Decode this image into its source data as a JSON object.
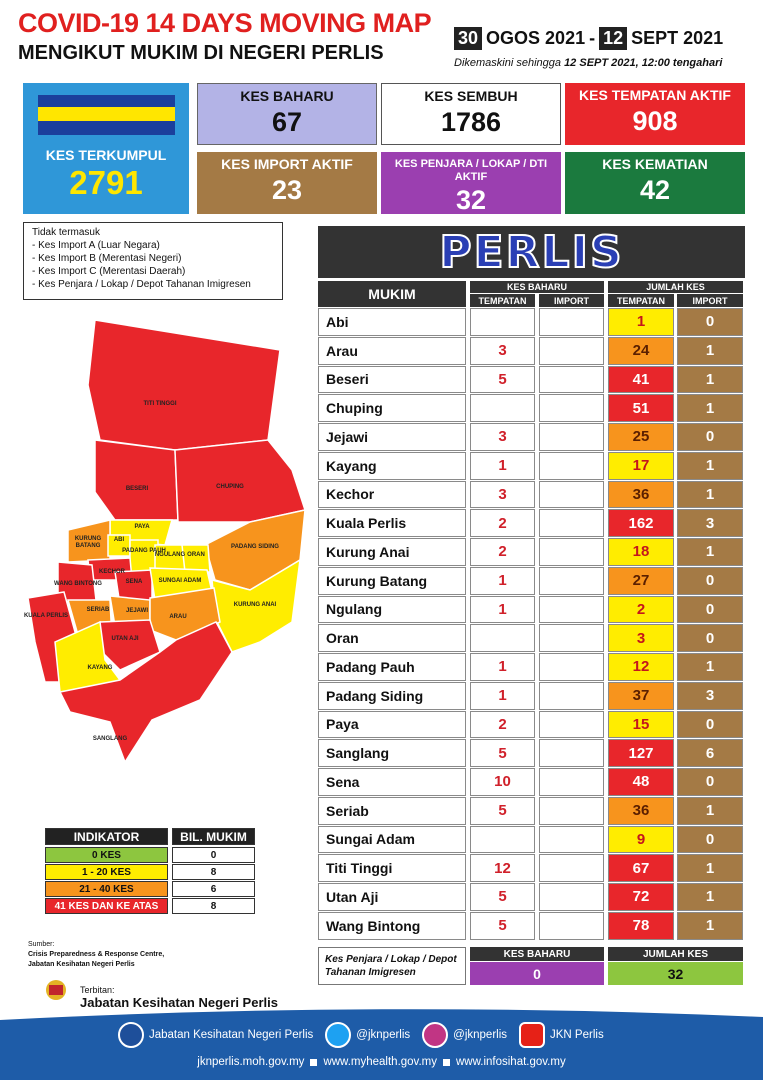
{
  "header": {
    "title": "COVID-19 14 DAYS MOVING MAP",
    "subtitle": "MENGIKUT MUKIM DI NEGERI PERLIS",
    "from_day": "30",
    "from_month": "OGOS 2021",
    "separator": "-",
    "to_day": "12",
    "to_month": "SEPT 2021",
    "updated_label": "Dikemaskini sehingga",
    "updated_time": "12 SEPT 2021, 12:00 tengahari"
  },
  "cards": [
    {
      "label": "KES TERKUMPUL",
      "value": 2791
    },
    {
      "label": "KES BAHARU",
      "value": 67
    },
    {
      "label": "KES SEMBUH",
      "value": 1786
    },
    {
      "label": "KES TEMPATAN AKTIF",
      "value": 908
    },
    {
      "label": "KES IMPORT AKTIF",
      "value": 23
    },
    {
      "label": "KES PENJARA / LOKAP / DTI AKTIF",
      "value": 32
    },
    {
      "label": "KES KEMATIAN",
      "value": 42
    }
  ],
  "notes": {
    "title": "Tidak termasuk",
    "items": [
      "- Kes Import A (Luar Negara)",
      "- Kes Import B (Merentasi Negeri)",
      "- Kes Import C (Merentasi Daerah)",
      "- Kes Penjara / Lokap / Depot Tahanan Imigresen"
    ]
  },
  "map_labels": [
    "TITI TINGGI",
    "BESERI",
    "CHUPING",
    "PAYA",
    "KURUNG BATANG",
    "ABI",
    "PADANG PAUH",
    "NGULANG",
    "ORAN",
    "PADANG SIDING",
    "KECHOR",
    "SENA",
    "SUNGAI ADAM",
    "WANG BINTONG",
    "SERIAB",
    "JEJAWI",
    "KUALA PERLIS",
    "KURUNG ANAI",
    "ARAU",
    "UTAN AJI",
    "KAYANG",
    "SANGLANG"
  ],
  "table": {
    "title": "PERLIS",
    "header_mukim": "MUKIM",
    "header_new": "KES BAHARU",
    "header_total": "JUMLAH KES",
    "sub_headers": [
      "TEMPATAN",
      "IMPORT",
      "TEMPATAN",
      "IMPORT"
    ],
    "rows": [
      [
        "Abi",
        null,
        null,
        1,
        0
      ],
      [
        "Arau",
        3,
        null,
        24,
        1
      ],
      [
        "Beseri",
        5,
        null,
        41,
        1
      ],
      [
        "Chuping",
        null,
        null,
        51,
        1
      ],
      [
        "Jejawi",
        3,
        null,
        25,
        0
      ],
      [
        "Kayang",
        1,
        null,
        17,
        1
      ],
      [
        "Kechor",
        3,
        null,
        36,
        1
      ],
      [
        "Kuala Perlis",
        2,
        null,
        162,
        3
      ],
      [
        "Kurung Anai",
        2,
        null,
        18,
        1
      ],
      [
        "Kurung Batang",
        1,
        null,
        27,
        0
      ],
      [
        "Ngulang",
        1,
        null,
        2,
        0
      ],
      [
        "Oran",
        null,
        null,
        3,
        0
      ],
      [
        "Padang Pauh",
        1,
        null,
        12,
        1
      ],
      [
        "Padang Siding",
        1,
        null,
        37,
        3
      ],
      [
        "Paya",
        2,
        null,
        15,
        0
      ],
      [
        "Sanglang",
        5,
        null,
        127,
        6
      ],
      [
        "Sena",
        10,
        null,
        48,
        0
      ],
      [
        "Seriab",
        5,
        null,
        36,
        1
      ],
      [
        "Sungai Adam",
        null,
        null,
        9,
        0
      ],
      [
        "Titi Tinggi",
        12,
        null,
        67,
        1
      ],
      [
        "Utan Aji",
        5,
        null,
        72,
        1
      ],
      [
        "Wang Bintong",
        5,
        null,
        78,
        1
      ]
    ]
  },
  "prison": {
    "label": "Kes Penjara / Lokap / Depot Tahanan Imigresen",
    "header_new": "KES BAHARU",
    "header_total": "JUMLAH KES",
    "new": 0,
    "total": 32
  },
  "indicator": {
    "header_label": "INDIKATOR",
    "header_count": "BIL. MUKIM",
    "rows": [
      {
        "label": "0 KES",
        "count": 0,
        "color": "#8dc63f"
      },
      {
        "label": "1 - 20 KES",
        "count": 8,
        "color": "#ffed00"
      },
      {
        "label": "21 - 40 KES",
        "count": 6,
        "color": "#f7941d"
      },
      {
        "label": "41 KES DAN KE ATAS",
        "count": 8,
        "color": "#e8262b"
      }
    ]
  },
  "source": {
    "label": "Sumber:",
    "line1": "Crisis Preparedness & Response Centre,",
    "line2": "Jabatan Kesihatan Negeri Perlis"
  },
  "publisher": {
    "label": "Terbitan:",
    "name": "Jabatan Kesihatan Negeri Perlis"
  },
  "footer": {
    "social": [
      "Jabatan Kesihatan Negeri Perlis",
      "@jknperlis",
      "@jknperlis",
      "JKN Perlis"
    ],
    "links": [
      "jknperlis.moh.gov.my",
      "www.myhealth.gov.my",
      "www.infosihat.gov.my"
    ]
  }
}
